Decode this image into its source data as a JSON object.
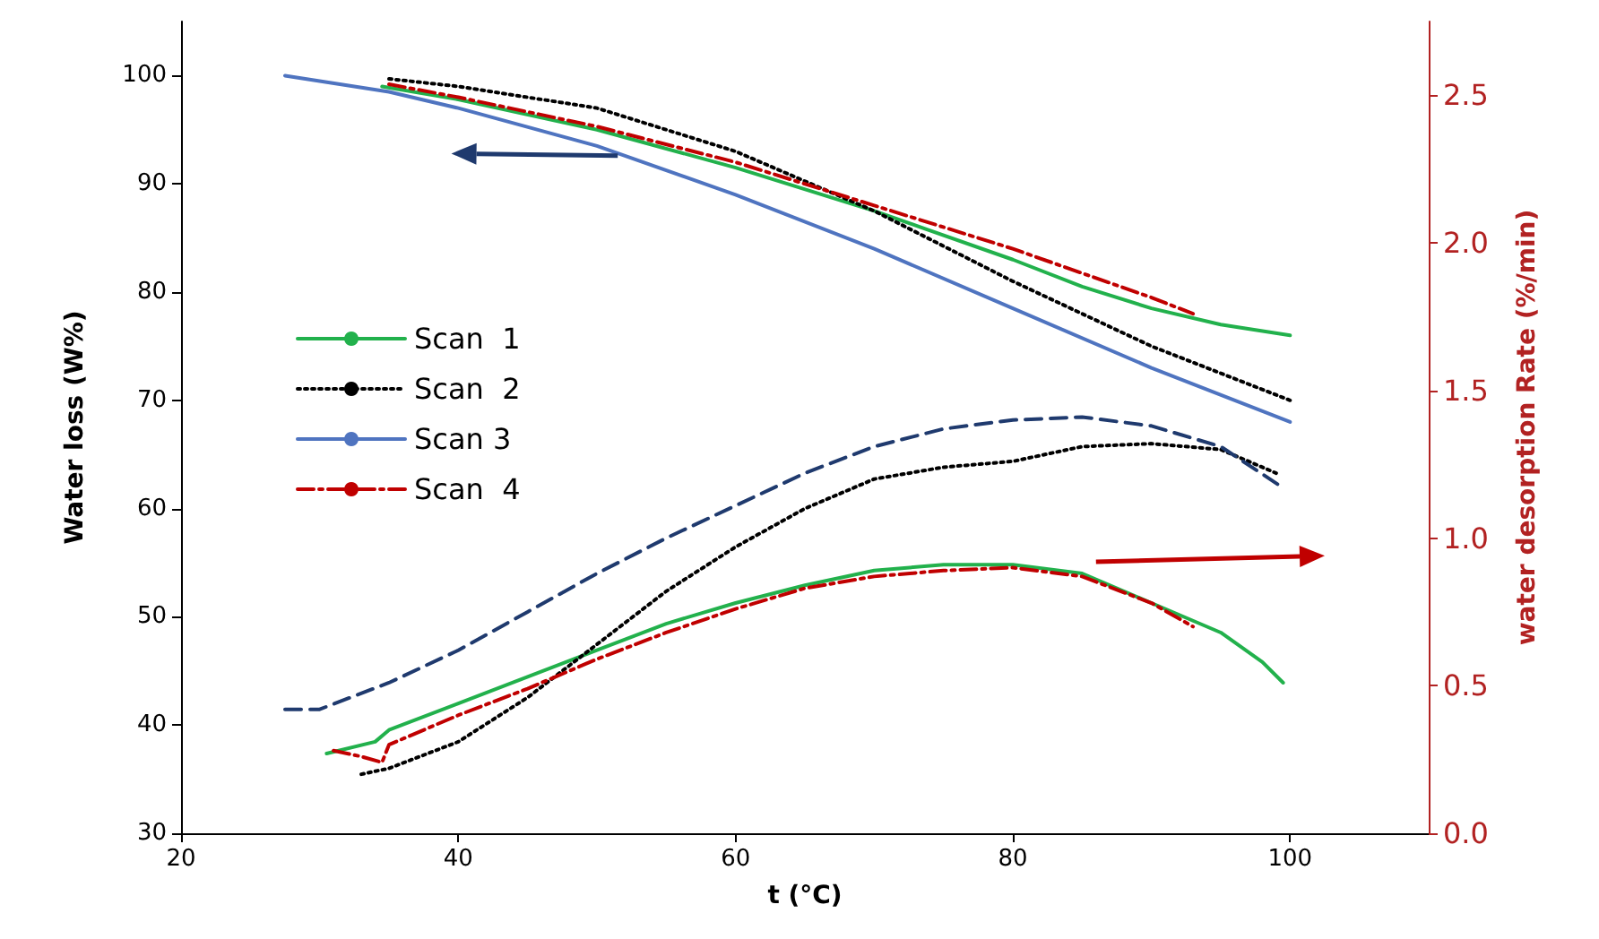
{
  "chart_data": {
    "type": "line",
    "xlabel": "t (°C)",
    "ylabel": "Water loss (W%)",
    "y2label": "water desorption Rate (%/min)",
    "xlim": [
      20,
      110
    ],
    "xticks": [
      20,
      40,
      60,
      80,
      100
    ],
    "ylim": [
      30,
      105
    ],
    "yticks": [
      30,
      40,
      50,
      60,
      70,
      80,
      90,
      100
    ],
    "y2lim": [
      0,
      2.75
    ],
    "y2ticks": [
      {
        "value": 0,
        "label": "0.0"
      },
      {
        "value": 0.5,
        "label": "0.5"
      },
      {
        "value": 1,
        "label": "1.0"
      },
      {
        "value": 1.5,
        "label": "1.5"
      },
      {
        "value": 2,
        "label": "2.0"
      },
      {
        "value": 2.5,
        "label": "2.5"
      }
    ],
    "grid": false,
    "legend": "top left",
    "marker": "none",
    "series": [
      {
        "name": "Scan  1",
        "color": "#22b14c",
        "line_style": "solid",
        "x": [
          34.5,
          40,
          50,
          60,
          70,
          80,
          85,
          90,
          95,
          100
        ],
        "values": [
          99,
          97.8,
          95,
          91.5,
          87.5,
          83,
          80.5,
          78.5,
          77,
          76
        ]
      },
      {
        "name": "Scan  2",
        "color": "#000000",
        "line_style": "dotted",
        "x": [
          35,
          40,
          50,
          60,
          70,
          80,
          90,
          100
        ],
        "values": [
          99.7,
          99,
          97,
          93,
          87.5,
          81,
          75,
          70
        ]
      },
      {
        "name": "Scan 3",
        "color": "#4f74c0",
        "line_style": "solid",
        "x": [
          27.5,
          35,
          40,
          50,
          60,
          70,
          80,
          90,
          100
        ],
        "values": [
          100,
          98.5,
          97,
          93.5,
          89,
          84,
          78.5,
          73,
          68
        ]
      },
      {
        "name": "Scan  4",
        "color": "#c00000",
        "line_style": "dashdot",
        "x": [
          35,
          40,
          50,
          60,
          70,
          80,
          90,
          93
        ],
        "values": [
          99.2,
          98,
          95.3,
          92,
          88,
          84,
          79.5,
          78
        ]
      },
      {
        "color": "#22b14c",
        "line_style": "solid",
        "axis": "y2",
        "x": [
          30.5,
          34,
          35,
          40,
          45,
          50,
          55,
          60,
          65,
          70,
          75,
          80,
          85,
          90,
          95,
          98,
          99.5
        ],
        "values": [
          0.27,
          0.31,
          0.35,
          0.44,
          0.53,
          0.62,
          0.71,
          0.78,
          0.84,
          0.89,
          0.91,
          0.91,
          0.88,
          0.78,
          0.68,
          0.58,
          0.51
        ]
      },
      {
        "color": "#000000",
        "line_style": "dotted",
        "axis": "y2",
        "x": [
          33,
          35,
          40,
          45,
          50,
          55,
          60,
          65,
          70,
          75,
          80,
          85,
          90,
          95,
          99
        ],
        "values": [
          0.2,
          0.22,
          0.31,
          0.46,
          0.64,
          0.82,
          0.97,
          1.1,
          1.2,
          1.24,
          1.26,
          1.31,
          1.32,
          1.3,
          1.22
        ]
      },
      {
        "color": "#1f3a6e",
        "line_style": "dashed",
        "axis": "y2",
        "x": [
          27.5,
          30,
          35,
          40,
          45,
          50,
          55,
          60,
          65,
          70,
          75,
          80,
          85,
          90,
          95,
          99.5
        ],
        "values": [
          0.42,
          0.42,
          0.51,
          0.62,
          0.75,
          0.88,
          1,
          1.11,
          1.22,
          1.31,
          1.37,
          1.4,
          1.41,
          1.38,
          1.31,
          1.17
        ]
      },
      {
        "color": "#c00000",
        "line_style": "dashdot",
        "axis": "y2",
        "x": [
          31,
          33,
          34.5,
          35,
          40,
          45,
          50,
          55,
          60,
          65,
          70,
          75,
          80,
          85,
          90,
          93
        ],
        "values": [
          0.28,
          0.26,
          0.24,
          0.3,
          0.4,
          0.49,
          0.59,
          0.68,
          0.76,
          0.83,
          0.87,
          0.89,
          0.9,
          0.87,
          0.78,
          0.7
        ]
      }
    ]
  }
}
